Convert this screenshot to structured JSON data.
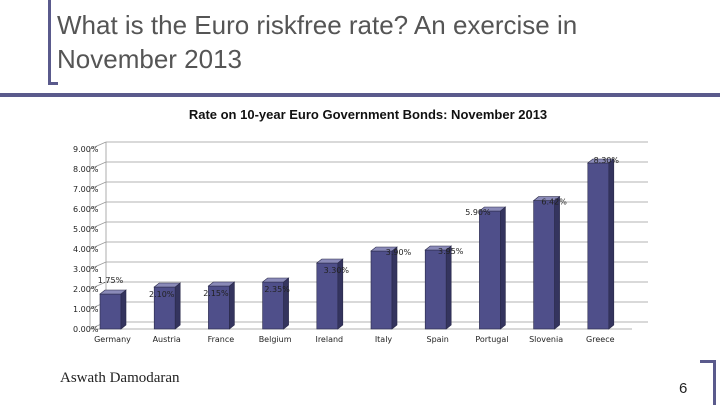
{
  "slide": {
    "title": "What is the Euro riskfree rate? An exercise in November 2013",
    "author": "Aswath Damodaran",
    "page_number": "6"
  },
  "colors": {
    "accent": "#5a5a8c",
    "bar_front": "#4f4f8a",
    "bar_side": "#34345e",
    "bar_top": "#8a8ab8"
  },
  "chart_data": {
    "type": "bar",
    "title": "Rate on 10-year Euro Government Bonds: November 2013",
    "categories": [
      "Germany",
      "Austria",
      "France",
      "Belgium",
      "Ireland",
      "Italy",
      "Spain",
      "Portugal",
      "Slovenia",
      "Greece"
    ],
    "values": [
      1.75,
      2.1,
      2.15,
      2.35,
      3.3,
      3.9,
      3.95,
      5.9,
      6.42,
      8.3
    ],
    "data_labels": [
      "1.75%",
      "2.10%",
      "2.15%",
      "2.35%",
      "3.30%",
      "3.90%",
      "3.95%",
      "5.90%",
      "6.42%",
      "8.30%"
    ],
    "yticks": [
      "0.00%",
      "1.00%",
      "2.00%",
      "3.00%",
      "4.00%",
      "5.00%",
      "6.00%",
      "7.00%",
      "8.00%",
      "9.00%"
    ],
    "ylim": [
      0,
      9
    ],
    "xlabel": "",
    "ylabel": "",
    "grid": true
  }
}
